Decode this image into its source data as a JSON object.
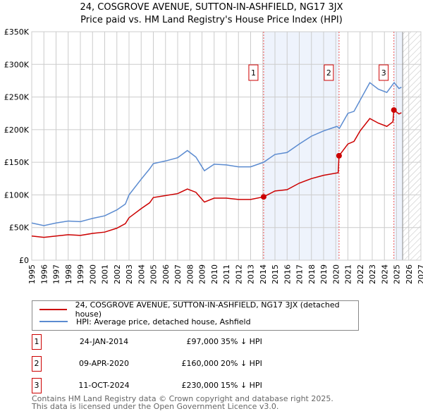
{
  "chart_data": {
    "type": "line",
    "title": "24, COSGROVE AVENUE, SUTTON-IN-ASHFIELD, NG17 3JX",
    "subtitle": "Price paid vs. HM Land Registry's House Price Index (HPI)",
    "xlim": [
      1995,
      2027
    ],
    "ylim": [
      0,
      350000
    ],
    "y_ticks": [
      0,
      50000,
      100000,
      150000,
      200000,
      250000,
      300000,
      350000
    ],
    "y_tick_labels": [
      "£0",
      "£50K",
      "£100K",
      "£150K",
      "£200K",
      "£250K",
      "£300K",
      "£350K"
    ],
    "x_ticks": [
      1995,
      1996,
      1997,
      1998,
      1999,
      2000,
      2001,
      2002,
      2003,
      2004,
      2005,
      2006,
      2007,
      2008,
      2009,
      2010,
      2011,
      2012,
      2013,
      2014,
      2015,
      2016,
      2017,
      2018,
      2019,
      2020,
      2021,
      2022,
      2023,
      2024,
      2025,
      2026,
      2027
    ],
    "grid": true,
    "projection_start": 2025.5,
    "series": [
      {
        "name": "24, COSGROVE AVENUE, SUTTON-IN-ASHFIELD, NG17 3JX (detached house)",
        "color": "#cc0000",
        "points": [
          [
            1995,
            37000
          ],
          [
            1996,
            35000
          ],
          [
            1997,
            37000
          ],
          [
            1998,
            39000
          ],
          [
            1999,
            38000
          ],
          [
            2000,
            41000
          ],
          [
            2001,
            43000
          ],
          [
            2002,
            49000
          ],
          [
            2002.7,
            56000
          ],
          [
            2003,
            65000
          ],
          [
            2004,
            79000
          ],
          [
            2004.7,
            88000
          ],
          [
            2005,
            96000
          ],
          [
            2006,
            99000
          ],
          [
            2007,
            102000
          ],
          [
            2007.8,
            109000
          ],
          [
            2008.5,
            104000
          ],
          [
            2009.2,
            89000
          ],
          [
            2010,
            95000
          ],
          [
            2011,
            95000
          ],
          [
            2012,
            93000
          ],
          [
            2013,
            93000
          ],
          [
            2014.07,
            97000
          ],
          [
            2015,
            106000
          ],
          [
            2016,
            108000
          ],
          [
            2017,
            118000
          ],
          [
            2018,
            125000
          ],
          [
            2019,
            130000
          ],
          [
            2020.2,
            134000
          ],
          [
            2020.27,
            160000
          ],
          [
            2021,
            178000
          ],
          [
            2021.5,
            182000
          ],
          [
            2022,
            198000
          ],
          [
            2022.8,
            217000
          ],
          [
            2023.5,
            210000
          ],
          [
            2024.2,
            205000
          ],
          [
            2024.7,
            212000
          ],
          [
            2024.78,
            230000
          ],
          [
            2025.2,
            224000
          ],
          [
            2025.4,
            226000
          ]
        ]
      },
      {
        "name": "HPI: Average price, detached house, Ashfield",
        "color": "#5b8bd0",
        "points": [
          [
            1995,
            57000
          ],
          [
            1996,
            53000
          ],
          [
            1997,
            57000
          ],
          [
            1998,
            60000
          ],
          [
            1999,
            59000
          ],
          [
            2000,
            64000
          ],
          [
            2001,
            68000
          ],
          [
            2002,
            77000
          ],
          [
            2002.7,
            86000
          ],
          [
            2003,
            100000
          ],
          [
            2004,
            124000
          ],
          [
            2004.7,
            140000
          ],
          [
            2005,
            148000
          ],
          [
            2006,
            152000
          ],
          [
            2007,
            157000
          ],
          [
            2007.8,
            168000
          ],
          [
            2008.5,
            158000
          ],
          [
            2009.2,
            137000
          ],
          [
            2010,
            147000
          ],
          [
            2011,
            146000
          ],
          [
            2012,
            143000
          ],
          [
            2013,
            143000
          ],
          [
            2014.07,
            150000
          ],
          [
            2015,
            162000
          ],
          [
            2016,
            165000
          ],
          [
            2017,
            178000
          ],
          [
            2018,
            190000
          ],
          [
            2019,
            198000
          ],
          [
            2020.1,
            205000
          ],
          [
            2020.3,
            202000
          ],
          [
            2021,
            225000
          ],
          [
            2021.5,
            228000
          ],
          [
            2022,
            245000
          ],
          [
            2022.8,
            272000
          ],
          [
            2023.5,
            262000
          ],
          [
            2024.2,
            257000
          ],
          [
            2024.8,
            272000
          ],
          [
            2025.2,
            263000
          ],
          [
            2025.4,
            265000
          ]
        ]
      }
    ],
    "sales": [
      {
        "label": "1",
        "date": "24-JAN-2014",
        "x": 2014.07,
        "price": 97000,
        "price_label": "£97,000",
        "hpi": "35% ↓ HPI"
      },
      {
        "label": "2",
        "date": "09-APR-2020",
        "x": 2020.27,
        "price": 160000,
        "price_label": "£160,000",
        "hpi": "20% ↓ HPI"
      },
      {
        "label": "3",
        "date": "11-OCT-2024",
        "x": 2024.78,
        "price": 230000,
        "price_label": "£230,000",
        "hpi": "15% ↓ HPI"
      }
    ]
  },
  "footer": {
    "line1": "Contains HM Land Registry data © Crown copyright and database right 2025.",
    "line2": "This data is licensed under the Open Government Licence v3.0."
  }
}
